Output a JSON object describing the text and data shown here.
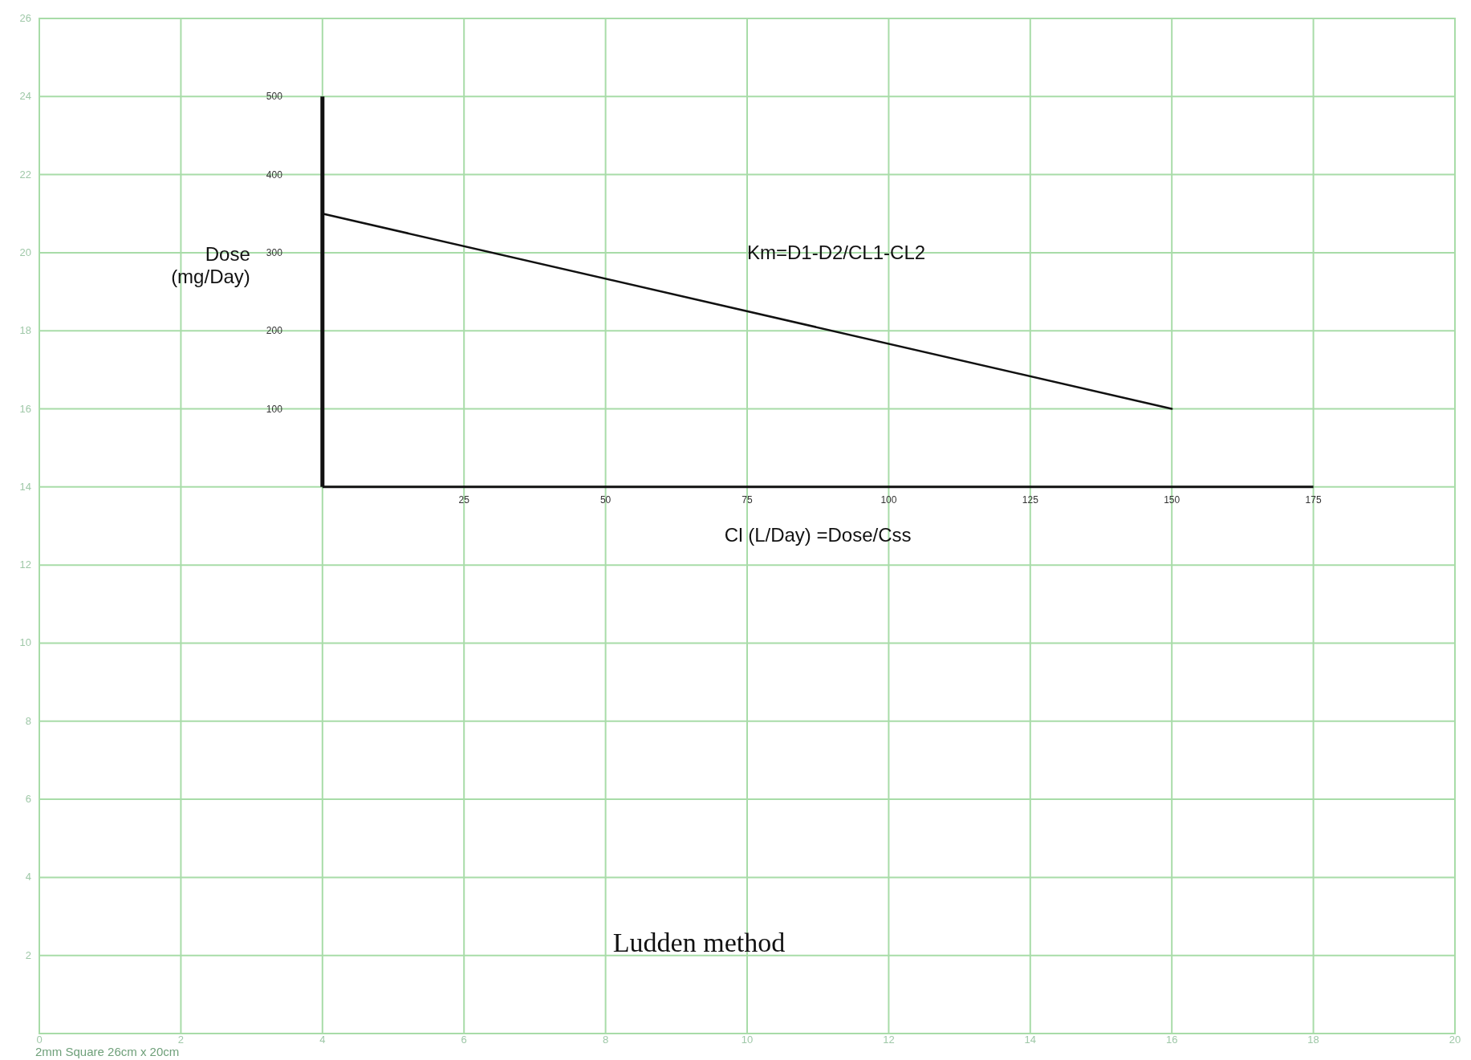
{
  "chart_data": {
    "type": "line",
    "title": "Ludden method",
    "xlabel": "Cl (L/Day) =Dose/Css",
    "ylabel": "Dose\n(mg/Day)",
    "x": [
      0,
      150
    ],
    "series": [
      {
        "color": "#111111",
        "values": [
          350,
          100
        ]
      }
    ],
    "xlim": [
      -50,
      200
    ],
    "ylim": [
      -700,
      600
    ],
    "xticks": [
      25,
      50,
      75,
      100,
      125,
      150,
      175
    ],
    "yticks": [
      100,
      200,
      300,
      400,
      500
    ],
    "x2lim": [
      0,
      20
    ],
    "x2ticks": [
      0,
      2,
      4,
      6,
      8,
      10,
      12,
      14,
      16,
      18,
      20
    ],
    "y2lim": [
      0,
      26
    ],
    "y2ticks": [
      2,
      4,
      6,
      8,
      10,
      12,
      14,
      16,
      18,
      20,
      22,
      24,
      26
    ],
    "ref_lines": [
      {
        "axis": "x",
        "value": 0,
        "color": "#111111",
        "line_style": "solid"
      }
    ],
    "grid": true,
    "marker": "none",
    "line_style": "solid",
    "annotations": [
      "Km=D1-D2/CL1-CL2",
      "2mm Square 26cm x 20cm"
    ]
  }
}
